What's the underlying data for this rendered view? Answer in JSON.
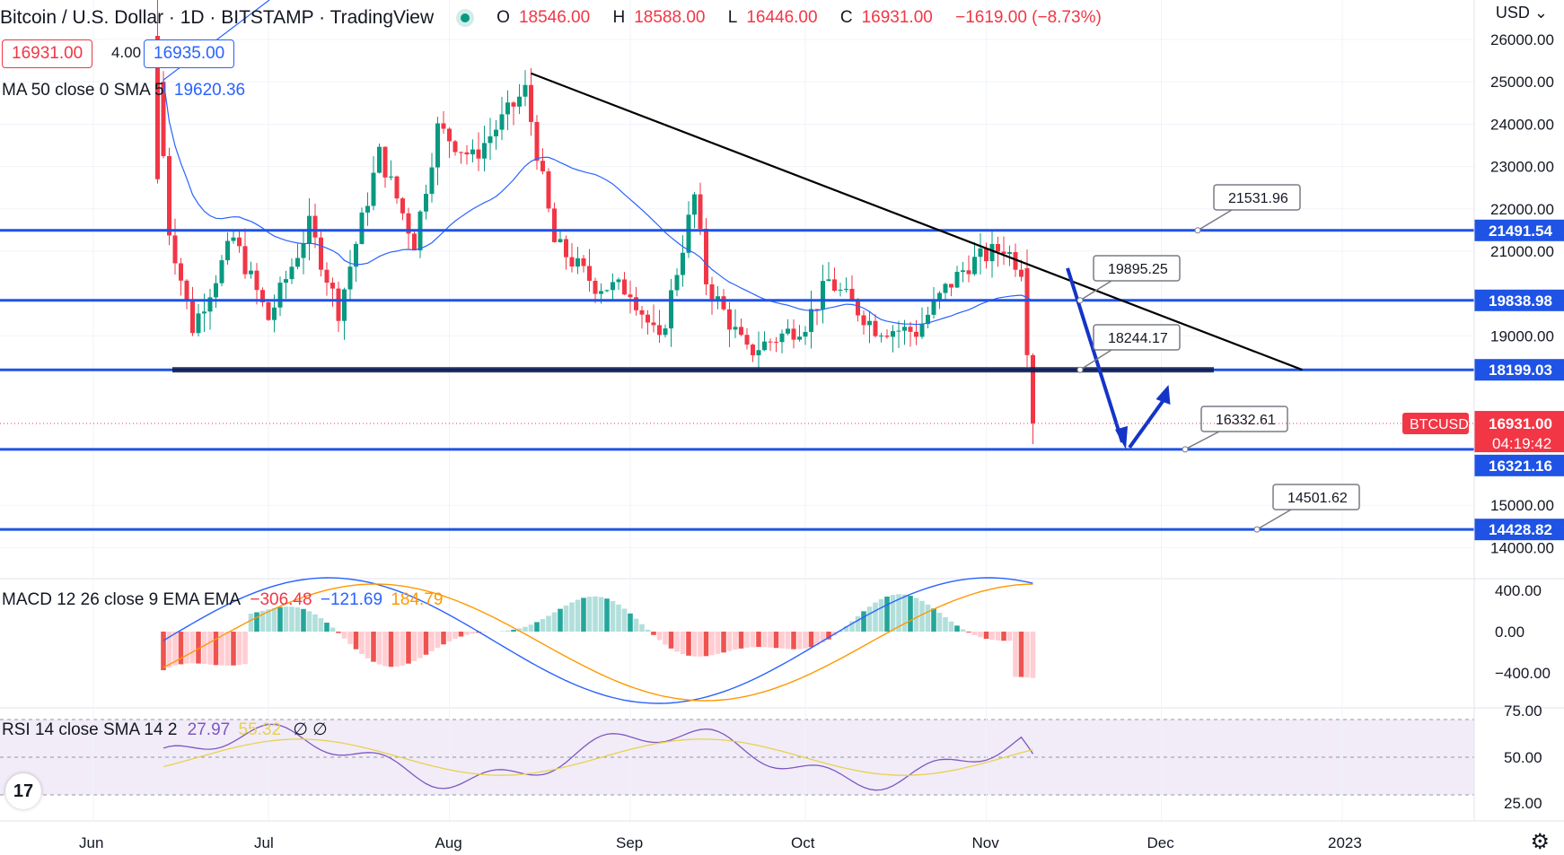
{
  "header": {
    "title": "Bitcoin / U.S. Dollar · 1D · BITSTAMP · TradingView",
    "ohlc": {
      "o_label": "O",
      "o": "18546.00",
      "h_label": "H",
      "h": "18588.00",
      "l_label": "L",
      "l": "16446.00",
      "c_label": "C",
      "c": "16931.00",
      "change": "−1619.00 (−8.73%)"
    },
    "bid": "16931.00",
    "spread": "4.00",
    "ask": "16935.00"
  },
  "indicators": {
    "ma_label": "MA 50 close 0 SMA 5",
    "ma_value": "19620.36",
    "macd_label": "MACD 12 26 close 9 EMA EMA",
    "macd_hist": "−306.48",
    "macd_line": "−121.69",
    "macd_signal": "184.79",
    "rsi_label": "RSI 14 close SMA 14 2",
    "rsi_value": "27.97",
    "rsi_sma": "55.32",
    "rsi_extra": "∅ ∅"
  },
  "axis": {
    "unit": "USD",
    "unit_icon": "chevron-down-icon",
    "price_ticks": [
      "26000.00",
      "25000.00",
      "24000.00",
      "23000.00",
      "22000.00",
      "21000.00",
      "19000.00",
      "15000.00",
      "14000.00"
    ],
    "macd_ticks": [
      "400.00",
      "0.00",
      "−400.00"
    ],
    "rsi_ticks": [
      "75.00",
      "50.00",
      "25.00"
    ],
    "time_labels": [
      "Jun",
      "Jul",
      "Aug",
      "Sep",
      "Oct",
      "Nov",
      "Dec",
      "2023"
    ]
  },
  "colors": {
    "up": "#089981",
    "down": "#f23645",
    "level_line": "#1e53e5",
    "trend_line": "#000000",
    "ma": "#2962ff",
    "macd": "#2962ff",
    "signal": "#ff9800",
    "rsi": "#7e57c2",
    "rsi_sma": "#e8d14e"
  },
  "chart_data": {
    "type": "candlestick",
    "symbol": "BTCUSD",
    "last_price": "16931.00",
    "countdown": "04:19:42",
    "horizontal_levels": [
      "21491.54",
      "19838.98",
      "18199.03",
      "16321.16",
      "14428.82"
    ],
    "callouts": [
      "21531.96",
      "19895.25",
      "18244.17",
      "16332.61",
      "14501.62"
    ],
    "trendline": {
      "from": {
        "x": "2022-08-15",
        "y": 25200
      },
      "to": {
        "x": "2022-12-15",
        "y": 18199
      }
    },
    "projection": [
      {
        "x": "2022-11-10",
        "y": 20600
      },
      {
        "x": "2022-11-20",
        "y": 16321
      },
      {
        "x": "2022-11-27",
        "y": 17800
      }
    ]
  }
}
